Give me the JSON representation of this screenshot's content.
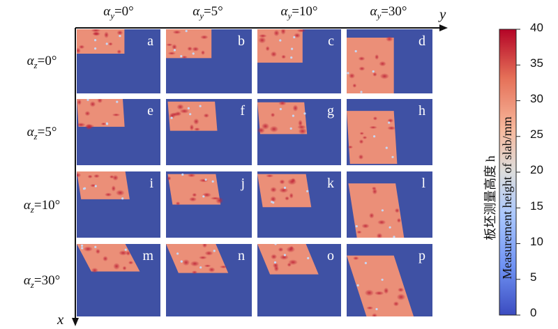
{
  "column_titles": [
    "αy=0°",
    "αy=5°",
    "αy=10°",
    "αy=30°"
  ],
  "row_titles": [
    "αz=0°",
    "αz=5°",
    "αz=10°",
    "αz=30°"
  ],
  "panel_labels": [
    "a",
    "b",
    "c",
    "d",
    "e",
    "f",
    "g",
    "h",
    "i",
    "j",
    "k",
    "l",
    "m",
    "n",
    "o",
    "p"
  ],
  "axes": {
    "x_label": "x",
    "y_label": "y"
  },
  "colorbar": {
    "title_line1": "板坯测量高度 h",
    "title_line2": "Measurement height of slab/mm",
    "ticks": [
      "0",
      "5",
      "10",
      "15",
      "20",
      "25",
      "30",
      "35",
      "40"
    ],
    "min": 0,
    "max": 40,
    "colors": [
      "#3b4cc0",
      "#6f92f3",
      "#aac7fd",
      "#dcdddd",
      "#f7b89c",
      "#e57058",
      "#b40426"
    ]
  },
  "colors": {
    "panel_background": "#3f51a4",
    "slab_base": "#eb8f78"
  }
}
